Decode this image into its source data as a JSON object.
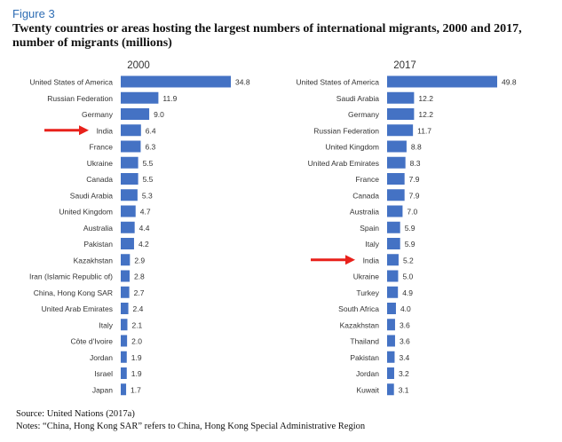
{
  "figure_label": "Figure 3",
  "title": "Twenty countries or areas hosting the largest numbers of international migrants, 2000 and 2017, number of migrants (millions)",
  "source": "Source: United Nations (2017a)",
  "notes": "Notes: “China, Hong Kong SAR” refers to China, Hong Kong Special Administrative Region",
  "colors": {
    "bar": "#4472c4",
    "arrow": "#e8211b"
  },
  "chart_data": [
    {
      "type": "bar",
      "orientation": "horizontal",
      "title": "2000",
      "categories": [
        "United States of America",
        "Russian Federation",
        "Germany",
        "India",
        "France",
        "Ukraine",
        "Canada",
        "Saudi Arabia",
        "United Kingdom",
        "Australia",
        "Pakistan",
        "Kazakhstan",
        "Iran (Islamic Republic of)",
        "China, Hong Kong SAR",
        "United Arab Emirates",
        "Italy",
        "Côte d'Ivoire",
        "Jordan",
        "Israel",
        "Japan"
      ],
      "values": [
        34.8,
        11.9,
        9.0,
        6.4,
        6.3,
        5.5,
        5.5,
        5.3,
        4.7,
        4.4,
        4.2,
        2.9,
        2.8,
        2.7,
        2.4,
        2.1,
        2.0,
        1.9,
        1.9,
        1.7
      ],
      "value_labels": [
        "34.8",
        "11.9",
        "9.0",
        "6.4",
        "6.3",
        "5.5",
        "5.5",
        "5.3",
        "4.7",
        "4.4",
        "4.2",
        "2.9",
        "2.8",
        "2.7",
        "2.4",
        "2.1",
        "2.0",
        "1.9",
        "1.9",
        "1.7"
      ],
      "highlight": "India",
      "grid": false
    },
    {
      "type": "bar",
      "orientation": "horizontal",
      "title": "2017",
      "categories": [
        "United States of America",
        "Saudi Arabia",
        "Germany",
        "Russian Federation",
        "United Kingdom",
        "United Arab Emirates",
        "France",
        "Canada",
        "Australia",
        "Spain",
        "Italy",
        "India",
        "Ukraine",
        "Turkey",
        "South Africa",
        "Kazakhstan",
        "Thailand",
        "Pakistan",
        "Jordan",
        "Kuwait"
      ],
      "values": [
        49.8,
        12.2,
        12.2,
        11.7,
        8.8,
        8.3,
        7.9,
        7.9,
        7.0,
        5.9,
        5.9,
        5.2,
        5.0,
        4.9,
        4.0,
        3.6,
        3.6,
        3.4,
        3.2,
        3.1
      ],
      "value_labels": [
        "49.8",
        "12.2",
        "12.2",
        "11.7",
        "8.8",
        "8.3",
        "7.9",
        "7.9",
        "7.0",
        "5.9",
        "5.9",
        "5.2",
        "5.0",
        "4.9",
        "4.0",
        "3.6",
        "3.6",
        "3.4",
        "3.2",
        "3.1"
      ],
      "highlight": "India",
      "grid": false
    }
  ]
}
